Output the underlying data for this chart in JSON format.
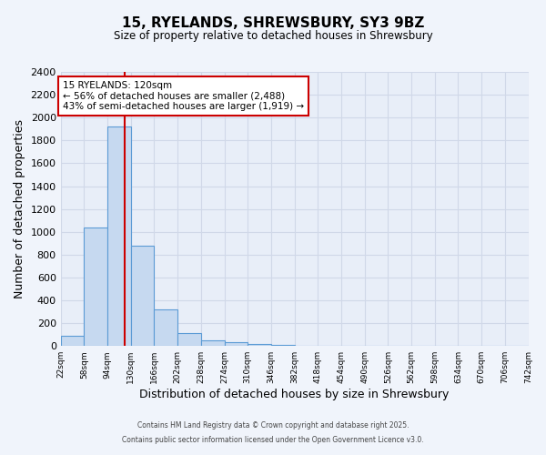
{
  "title": "15, RYELANDS, SHREWSBURY, SY3 9BZ",
  "subtitle": "Size of property relative to detached houses in Shrewsbury",
  "xlabel": "Distribution of detached houses by size in Shrewsbury",
  "ylabel": "Number of detached properties",
  "bin_labels": [
    "22sqm",
    "58sqm",
    "94sqm",
    "130sqm",
    "166sqm",
    "202sqm",
    "238sqm",
    "274sqm",
    "310sqm",
    "346sqm",
    "382sqm",
    "418sqm",
    "454sqm",
    "490sqm",
    "526sqm",
    "562sqm",
    "598sqm",
    "634sqm",
    "670sqm",
    "706sqm",
    "742sqm"
  ],
  "bin_edges": [
    22,
    58,
    94,
    130,
    166,
    202,
    238,
    274,
    310,
    346,
    382,
    418,
    454,
    490,
    526,
    562,
    598,
    634,
    670,
    706,
    742
  ],
  "bar_values": [
    88,
    1040,
    1920,
    880,
    320,
    110,
    50,
    35,
    20,
    10,
    5,
    5,
    5,
    3,
    2,
    2,
    2,
    1,
    1,
    1
  ],
  "bar_color": "#c6d9f0",
  "bar_edge_color": "#5b9bd5",
  "grid_color": "#d0d8e8",
  "background_color": "#e8eef8",
  "fig_background_color": "#f0f4fb",
  "vline_x": 120,
  "vline_color": "#cc0000",
  "annotation_title": "15 RYELANDS: 120sqm",
  "annotation_line1": "← 56% of detached houses are smaller (2,488)",
  "annotation_line2": "43% of semi-detached houses are larger (1,919) →",
  "annotation_box_color": "#ffffff",
  "annotation_box_edge": "#cc0000",
  "ylim": [
    0,
    2400
  ],
  "yticks": [
    0,
    200,
    400,
    600,
    800,
    1000,
    1200,
    1400,
    1600,
    1800,
    2000,
    2200,
    2400
  ],
  "footer_line1": "Contains HM Land Registry data © Crown copyright and database right 2025.",
  "footer_line2": "Contains public sector information licensed under the Open Government Licence v3.0."
}
